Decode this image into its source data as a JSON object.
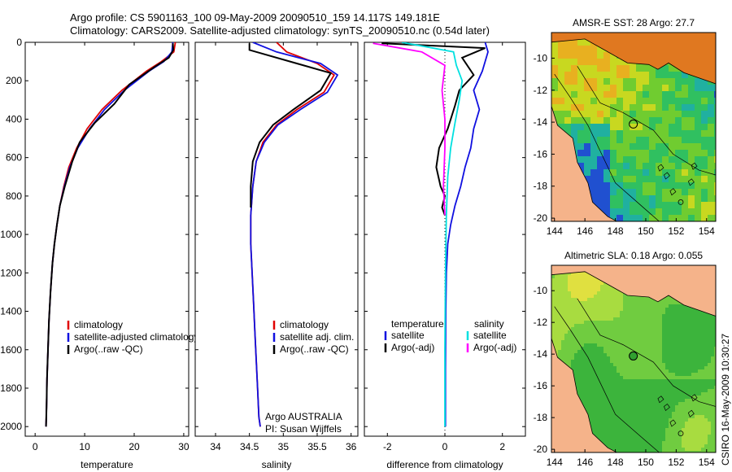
{
  "header": {
    "line1": "Argo profile: CS 5901163_100 09-May-2009 20090510_159 14.117S 149.181E",
    "line2": "Climatology: CARS2009. Satellite-adjusted climatology: synTS_20090510.nc (0.54d later)"
  },
  "credit": "CSIRO 16-May-2009 10:30:27",
  "colors": {
    "climatology": "#e00000",
    "satellite": "#1010e0",
    "argo": "#000000",
    "salt_satellite": "#00e0e0",
    "salt_argo": "#ff00ff",
    "land": "#f5b38a"
  },
  "chart_data": [
    {
      "type": "line",
      "name": "temperature",
      "xlabel": "temperature",
      "ylabel": "",
      "xlim": [
        -2,
        31
      ],
      "ylim": [
        2050,
        0
      ],
      "xticks": [
        0,
        10,
        20,
        30
      ],
      "yticks": [
        0,
        200,
        400,
        600,
        800,
        1000,
        1200,
        1400,
        1600,
        1800,
        2000
      ],
      "legend": [
        "climatology",
        "satellite-adjusted climatology",
        "Argo(..raw -QC)"
      ],
      "series": [
        {
          "name": "climatology",
          "color": "climatology",
          "x": [
            28.3,
            28.0,
            25.5,
            22.5,
            17.5,
            13.5,
            10.5,
            8.4,
            6.8,
            5.8,
            5.0,
            4.4,
            3.9,
            3.5,
            3.1,
            2.8,
            2.6,
            2.4,
            2.3,
            2.2
          ],
          "y": [
            0,
            50,
            100,
            150,
            250,
            350,
            450,
            550,
            650,
            750,
            850,
            950,
            1050,
            1150,
            1300,
            1450,
            1600,
            1750,
            1900,
            2000
          ]
        },
        {
          "name": "satellite",
          "color": "satellite",
          "x": [
            27.8,
            27.6,
            26.0,
            23.0,
            18.0,
            14.0,
            11.0,
            8.6,
            7.0,
            5.9,
            5.0,
            4.4,
            3.9,
            3.5,
            3.1,
            2.8,
            2.6,
            2.4,
            2.3,
            2.2
          ],
          "y": [
            0,
            50,
            100,
            150,
            250,
            350,
            450,
            550,
            650,
            750,
            850,
            950,
            1050,
            1150,
            1300,
            1450,
            1600,
            1750,
            1900,
            2000
          ]
        },
        {
          "name": "Argo",
          "color": "argo",
          "x": [
            27.8,
            27.9,
            27.0,
            24.0,
            19.0,
            16.0,
            12.0,
            9.0,
            7.5,
            6.0,
            5.0,
            4.4,
            3.9,
            3.5,
            3.1,
            2.8,
            2.6,
            2.4,
            2.3,
            2.2
          ],
          "y": [
            5,
            40,
            80,
            130,
            220,
            320,
            420,
            520,
            620,
            750,
            850,
            950,
            1050,
            1150,
            1300,
            1450,
            1600,
            1750,
            1900,
            2000
          ]
        }
      ]
    },
    {
      "type": "line",
      "name": "salinity",
      "xlabel": "salinity",
      "ylabel": "",
      "xlim": [
        33.7,
        36.1
      ],
      "ylim": [
        2050,
        0
      ],
      "xticks": [
        34,
        34.5,
        35,
        35.5,
        36
      ],
      "yticks": [
        0,
        200,
        400,
        600,
        800,
        1000,
        1200,
        1400,
        1600,
        1800,
        2000
      ],
      "legend": [
        "climatology",
        "satellite adj. clim.",
        "Argo(..raw -QC)"
      ],
      "annotations": [
        "Argo AUSTRALIA",
        "PI: Susan Wijffels"
      ],
      "series": [
        {
          "name": "climatology",
          "color": "climatology",
          "x": [
            34.9,
            35.05,
            35.5,
            35.75,
            35.6,
            35.2,
            34.9,
            34.7,
            34.6,
            34.55,
            34.52,
            34.52,
            34.54,
            34.56,
            34.58,
            34.6,
            34.62,
            34.64,
            34.66
          ],
          "y": [
            0,
            50,
            110,
            170,
            260,
            350,
            430,
            520,
            620,
            750,
            900,
            1050,
            1200,
            1350,
            1500,
            1650,
            1800,
            1950,
            2000
          ]
        },
        {
          "name": "satellite",
          "color": "satellite",
          "x": [
            34.55,
            34.9,
            35.55,
            35.8,
            35.65,
            35.25,
            34.92,
            34.72,
            34.6,
            34.55,
            34.52,
            34.52,
            34.54,
            34.56,
            34.58,
            34.6,
            34.62,
            34.64,
            34.66
          ],
          "y": [
            0,
            50,
            110,
            170,
            260,
            350,
            430,
            520,
            620,
            750,
            900,
            1050,
            1200,
            1350,
            1500,
            1650,
            1800,
            1950,
            2000
          ]
        },
        {
          "name": "Argo",
          "color": "argo",
          "x": [
            34.5,
            34.5,
            35.2,
            35.7,
            35.55,
            35.15,
            34.85,
            34.65,
            34.55,
            34.52,
            34.52
          ],
          "y": [
            5,
            40,
            110,
            160,
            250,
            350,
            430,
            520,
            620,
            750,
            860
          ]
        }
      ]
    },
    {
      "type": "line",
      "name": "difference",
      "xlabel": "difference from climatology",
      "ylabel": "",
      "xlim": [
        -2.8,
        2.8
      ],
      "ylim": [
        2050,
        0
      ],
      "xticks": [
        -2,
        0,
        2
      ],
      "yticks": [
        0,
        200,
        400,
        600,
        800,
        1000,
        1200,
        1400,
        1600,
        1800,
        2000
      ],
      "legend": {
        "temperature": [
          "satellite",
          "Argo(-adj)"
        ],
        "salinity": [
          "satellite",
          "Argo(-adj)"
        ]
      },
      "series": [
        {
          "name": "temperature satellite",
          "color": "satellite",
          "x": [
            1.4,
            1.5,
            1.3,
            1.0,
            1.2,
            1.0,
            0.9,
            0.7,
            0.55,
            0.35,
            0.2,
            0.1,
            0.05,
            0.03,
            0.02,
            0.02
          ],
          "y": [
            0,
            50,
            150,
            250,
            350,
            450,
            550,
            650,
            750,
            850,
            950,
            1050,
            1200,
            1400,
            1700,
            2000
          ]
        },
        {
          "name": "temperature Argo",
          "color": "argo",
          "x": [
            -2.2,
            1.4,
            0.6,
            1.0,
            0.5,
            0.35,
            0.1,
            -0.2,
            -0.3,
            -0.15,
            0.0,
            -0.1,
            0.0
          ],
          "y": [
            5,
            30,
            80,
            170,
            250,
            330,
            450,
            550,
            650,
            750,
            800,
            860,
            900
          ]
        },
        {
          "name": "salinity satellite",
          "color": "salt_satellite",
          "x": [
            -1.5,
            0.3,
            0.4,
            0.6,
            0.5,
            0.35,
            0.2,
            0.1,
            0.05,
            0.02,
            0.0,
            0.0
          ],
          "y": [
            0,
            50,
            120,
            200,
            300,
            420,
            550,
            700,
            900,
            1200,
            1600,
            2000
          ]
        },
        {
          "name": "salinity Argo",
          "color": "salt_argo",
          "x": [
            -2.5,
            -0.8,
            0.0,
            -0.1,
            0.0,
            0.0,
            -0.05,
            0.0
          ],
          "y": [
            5,
            50,
            120,
            250,
            400,
            550,
            750,
            900
          ]
        }
      ]
    },
    {
      "type": "heatmap",
      "name": "sst-map",
      "title": "AMSR-E SST: 28 Argo: 27.7",
      "xlim": [
        143.8,
        154.6
      ],
      "ylim": [
        -20.2,
        -8.4
      ],
      "xticks": [
        144,
        146,
        148,
        150,
        152,
        154
      ],
      "yticks": [
        -10,
        -12,
        -14,
        -16,
        -18,
        -20
      ],
      "marker": {
        "lon": 149.181,
        "lat": -14.117
      }
    },
    {
      "type": "heatmap",
      "name": "sla-map",
      "title": "Altimetric SLA: 0.18 Argo: 0.055",
      "xlim": [
        143.8,
        154.6
      ],
      "ylim": [
        -20.2,
        -8.4
      ],
      "xticks": [
        144,
        146,
        148,
        150,
        152,
        154
      ],
      "yticks": [
        -10,
        -12,
        -14,
        -16,
        -18,
        -20
      ],
      "marker": {
        "lon": 149.181,
        "lat": -14.117
      }
    }
  ]
}
